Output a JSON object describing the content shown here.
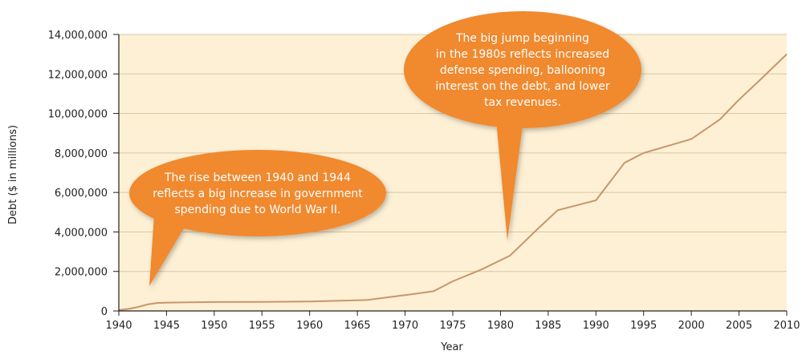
{
  "chart_data": {
    "type": "line",
    "xlabel": "Year",
    "ylabel": "Debt ($ in millions)",
    "xlim": [
      1940,
      2010
    ],
    "ylim": [
      0,
      14000000
    ],
    "x_ticks": [
      "1940",
      "1945",
      "1950",
      "1955",
      "1960",
      "1965",
      "1970",
      "1975",
      "1980",
      "1985",
      "1990",
      "1995",
      "2000",
      "2005",
      "2010"
    ],
    "y_ticks": [
      "0",
      "2,000,000",
      "4,000,000",
      "6,000,000",
      "8,000,000",
      "10,000,000",
      "12,000,000",
      "14,000,000"
    ],
    "grid": "horizontal",
    "legend": "none",
    "series": [
      {
        "x": [
          1940,
          1941,
          1942,
          1943,
          1944,
          1945,
          1950,
          1955,
          1960,
          1966,
          1970,
          1973,
          1975,
          1978,
          1981,
          1984,
          1986,
          1990,
          1993,
          1995,
          2000,
          2003,
          2005,
          2007,
          2010
        ],
        "values": [
          43000,
          100000,
          200000,
          330000,
          400000,
          420000,
          450000,
          460000,
          480000,
          550000,
          800000,
          1000000,
          1500000,
          2100000,
          2800000,
          4200000,
          5100000,
          5600000,
          7500000,
          8000000,
          8700000,
          9700000,
          10700000,
          11600000,
          13000000
        ]
      }
    ],
    "annotations": [
      "The big jump beginning in the 1980s reflects increased defense spending, ballooning interest on the debt, and lower tax revenues.",
      "The rise between 1940 and 1944 reflects a big increase in government spending due to World War II."
    ],
    "annotation_lines": [
      [
        "The big jump beginning",
        "in the 1980s reflects increased",
        "defense spending, ballooning",
        "interest on the debt, and lower",
        "tax revenues."
      ],
      [
        "The rise between 1940 and 1944",
        "reflects a big increase in government",
        "spending due to World War II."
      ]
    ],
    "colors": {
      "plot_background": "#fdf0d5",
      "line": "#c9956a",
      "grid": "#d8c7a6",
      "callout_fill": "#f1892d",
      "callout_text": "#ffffff",
      "axis": "#231f20"
    }
  }
}
